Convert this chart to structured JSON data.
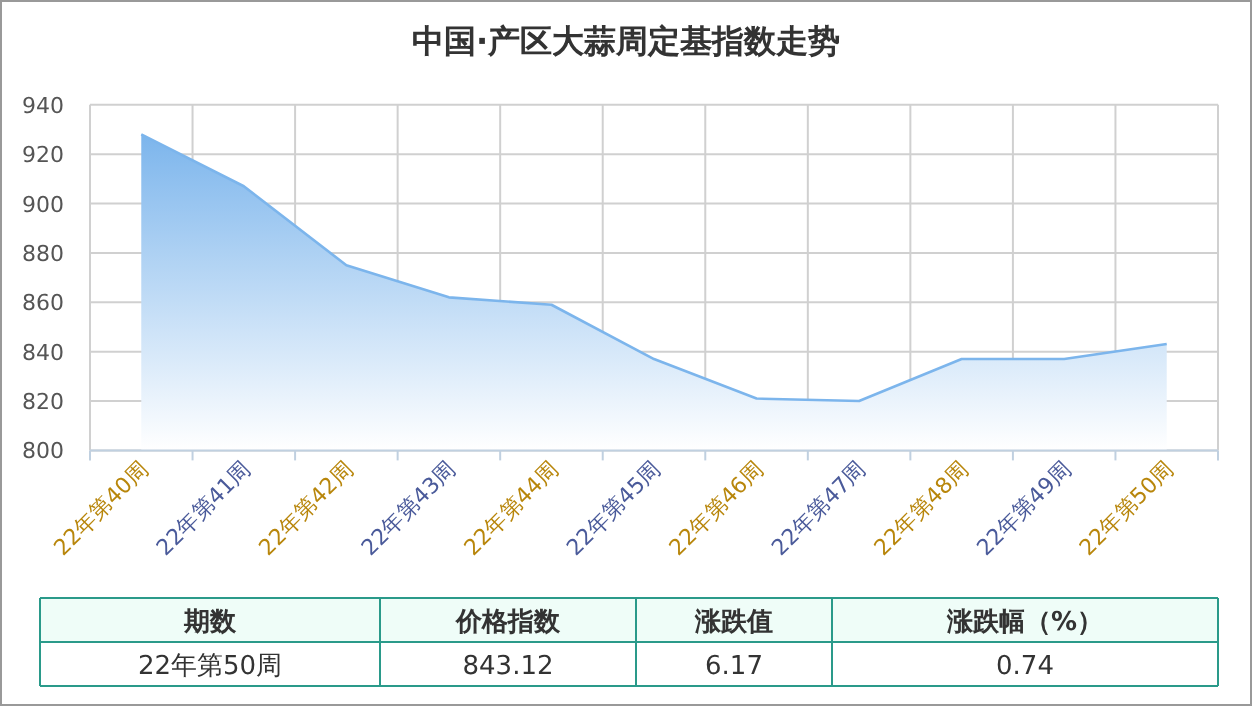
{
  "chart_data": {
    "type": "area",
    "title": "中国·产区大蒜周定基指数走势",
    "categories": [
      "22年第40周",
      "22年第41周",
      "22年第42周",
      "22年第43周",
      "22年第44周",
      "22年第45周",
      "22年第46周",
      "22年第47周",
      "22年第48周",
      "22年第49周",
      "22年第50周"
    ],
    "values": [
      928,
      907,
      875,
      862,
      859,
      837,
      821,
      820,
      837,
      837,
      843.12
    ],
    "color": "#7cb5ec",
    "ylim": [
      800,
      940
    ],
    "yticks": [
      800,
      820,
      840,
      860,
      880,
      900,
      920,
      940
    ],
    "grid": true,
    "marker": "none",
    "annotations": [
      "期数",
      "价格指数",
      "涨跌值",
      "涨跌幅（%）",
      "22年第50周",
      "843.12",
      "6.17",
      "0.74"
    ]
  }
}
